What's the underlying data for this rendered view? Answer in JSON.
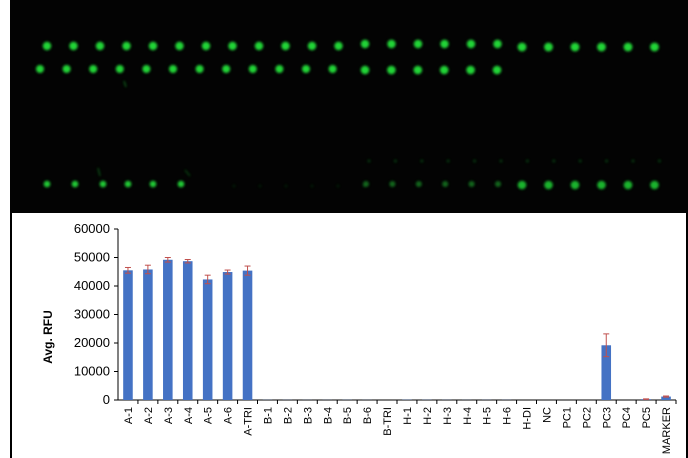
{
  "scan_image": {
    "spot_color": "#22e03a",
    "background_color": "#030303"
  },
  "chart_data": {
    "type": "bar",
    "title": "",
    "xlabel": "",
    "ylabel": "Avg. RFU",
    "ylim": [
      0,
      60000
    ],
    "yticks": [
      0,
      10000,
      20000,
      30000,
      40000,
      50000,
      60000
    ],
    "grid": false,
    "legend": "none",
    "bar_color": "#4472c4",
    "error_bar_color": "#c0504d",
    "categories": [
      "A-1",
      "A-2",
      "A-3",
      "A-4",
      "A-5",
      "A-6",
      "A-TRI",
      "B-1",
      "B-2",
      "B-3",
      "B-4",
      "B-5",
      "B-6",
      "B-TRI",
      "H-1",
      "H-2",
      "H-3",
      "H-4",
      "H-5",
      "H-6",
      "H-DI",
      "NC",
      "PC1",
      "PC2",
      "PC3",
      "PC4",
      "PC5",
      "MARKER"
    ],
    "values": [
      45500,
      45800,
      49200,
      48700,
      42300,
      44900,
      45400,
      50,
      40,
      30,
      30,
      50,
      30,
      0,
      80,
      60,
      40,
      30,
      40,
      40,
      0,
      0,
      0,
      0,
      19200,
      0,
      300,
      1200
    ],
    "errors": [
      1000,
      1500,
      800,
      600,
      1500,
      700,
      1600,
      0,
      0,
      0,
      0,
      0,
      0,
      0,
      0,
      0,
      0,
      0,
      0,
      0,
      0,
      0,
      0,
      0,
      4000,
      0,
      100,
      200
    ]
  }
}
